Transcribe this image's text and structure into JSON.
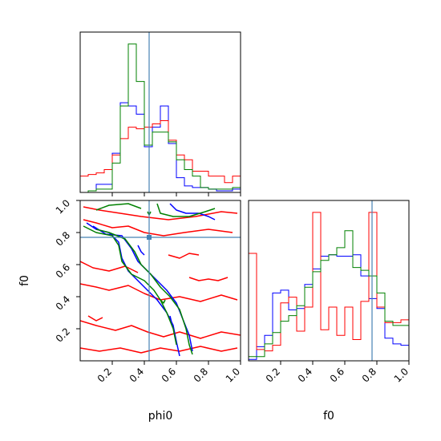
{
  "chart_data": {
    "type": "corner",
    "parameters": [
      "phi0",
      "f0"
    ],
    "truth": {
      "phi0": 0.43,
      "f0": 0.77
    },
    "truth_color": "#4682b4",
    "series_colors": [
      "#0000ff",
      "#ff0000",
      "#008000"
    ],
    "panels": {
      "phi0_hist": {
        "type": "histogram",
        "xlim": [
          0,
          1
        ],
        "bin_edges": [
          0,
          0.05,
          0.1,
          0.15,
          0.2,
          0.25,
          0.3,
          0.35,
          0.4,
          0.45,
          0.5,
          0.55,
          0.6,
          0.65,
          0.7,
          0.75,
          0.8,
          0.85,
          0.9,
          0.95,
          1.0
        ],
        "series": [
          {
            "color": "#0000ff",
            "counts": [
              0,
              0.01,
              0.05,
              0.05,
              0.24,
              0.55,
              0.53,
              0.48,
              0.28,
              0.4,
              0.53,
              0.3,
              0.09,
              0.04,
              0.03,
              0.03,
              0.02,
              0.01,
              0.01,
              0.02
            ]
          },
          {
            "color": "#ff0000",
            "counts": [
              0.1,
              0.11,
              0.12,
              0.14,
              0.23,
              0.33,
              0.4,
              0.39,
              0.4,
              0.42,
              0.44,
              0.32,
              0.23,
              0.2,
              0.13,
              0.13,
              0.1,
              0.1,
              0.06,
              0.1
            ]
          },
          {
            "color": "#008000",
            "counts": [
              0,
              0.01,
              0.02,
              0.02,
              0.18,
              0.53,
              0.91,
              0.68,
              0.29,
              0.37,
              0.37,
              0.31,
              0.2,
              0.14,
              0.1,
              0.03,
              0.02,
              0.02,
              0.02,
              0.03
            ]
          }
        ]
      },
      "f0_hist": {
        "type": "histogram",
        "xlim": [
          0,
          1
        ],
        "x_tick_labels": [
          "0.2",
          "0.4",
          "0.6",
          "0.8",
          "1.0"
        ],
        "bin_edges": [
          0,
          0.05,
          0.1,
          0.15,
          0.2,
          0.25,
          0.3,
          0.35,
          0.4,
          0.45,
          0.5,
          0.55,
          0.6,
          0.65,
          0.7,
          0.75,
          0.8,
          0.85,
          0.9,
          0.95,
          1.0
        ],
        "series": [
          {
            "color": "#0000ff",
            "counts": [
              0.01,
              0.1,
              0.18,
              0.48,
              0.5,
              0.36,
              0.37,
              0.54,
              0.65,
              0.74,
              0.75,
              0.74,
              0.74,
              0.75,
              0.6,
              0.44,
              0.37,
              0.16,
              0.12,
              0.11
            ]
          },
          {
            "color": "#ff0000",
            "counts": [
              0.76,
              0.08,
              0.07,
              0.11,
              0.41,
              0.45,
              0.21,
              0.38,
              1.05,
              0.22,
              0.38,
              0.18,
              0.38,
              0.15,
              0.42,
              1.05,
              0.38,
              0.27,
              0.27,
              0.29
            ]
          },
          {
            "color": "#008000",
            "counts": [
              0.03,
              0.03,
              0.12,
              0.2,
              0.28,
              0.32,
              0.39,
              0.52,
              0.63,
              0.71,
              0.75,
              0.8,
              0.92,
              0.66,
              0.64,
              0.6,
              0.48,
              0.28,
              0.25,
              0.25
            ]
          }
        ]
      },
      "joint": {
        "type": "contour",
        "x_param": "phi0",
        "y_param": "f0",
        "xlim": [
          0,
          1
        ],
        "ylim": [
          0,
          1
        ],
        "x_tick_labels": [
          "0.2",
          "0.4",
          "0.6",
          "0.8",
          "1.0"
        ],
        "y_tick_labels": [
          "0.2",
          "0.4",
          "0.6",
          "0.8",
          "1.0"
        ],
        "xlabel": "phi0",
        "ylabel": "f0",
        "contours": [
          {
            "color": "#ff0000",
            "path": [
              [
                0.02,
                0.96
              ],
              [
                0.12,
                0.94
              ],
              [
                0.25,
                0.92
              ],
              [
                0.38,
                0.9
              ],
              [
                0.55,
                0.88
              ],
              [
                0.72,
                0.9
              ],
              [
                0.88,
                0.93
              ],
              [
                0.98,
                0.92
              ]
            ]
          },
          {
            "color": "#ff0000",
            "path": [
              [
                0.02,
                0.88
              ],
              [
                0.1,
                0.86
              ],
              [
                0.2,
                0.83
              ],
              [
                0.3,
                0.84
              ],
              [
                0.4,
                0.8
              ],
              [
                0.52,
                0.78
              ],
              [
                0.65,
                0.8
              ],
              [
                0.8,
                0.82
              ],
              [
                0.95,
                0.8
              ]
            ]
          },
          {
            "color": "#ff0000",
            "path": [
              [
                0.0,
                0.62
              ],
              [
                0.08,
                0.58
              ],
              [
                0.18,
                0.56
              ],
              [
                0.28,
                0.59
              ],
              [
                0.36,
                0.55
              ]
            ]
          },
          {
            "color": "#ff0000",
            "path": [
              [
                0.0,
                0.48
              ],
              [
                0.1,
                0.46
              ],
              [
                0.18,
                0.44
              ],
              [
                0.3,
                0.47
              ],
              [
                0.4,
                0.42
              ],
              [
                0.5,
                0.38
              ],
              [
                0.62,
                0.4
              ],
              [
                0.75,
                0.37
              ],
              [
                0.88,
                0.41
              ],
              [
                0.98,
                0.38
              ]
            ]
          },
          {
            "color": "#ff0000",
            "path": [
              [
                0.0,
                0.25
              ],
              [
                0.1,
                0.22
              ],
              [
                0.22,
                0.19
              ],
              [
                0.32,
                0.22
              ],
              [
                0.42,
                0.18
              ],
              [
                0.52,
                0.15
              ],
              [
                0.62,
                0.18
              ],
              [
                0.75,
                0.14
              ],
              [
                0.88,
                0.18
              ],
              [
                1.0,
                0.16
              ]
            ]
          },
          {
            "color": "#ff0000",
            "path": [
              [
                0.0,
                0.08
              ],
              [
                0.12,
                0.06
              ],
              [
                0.25,
                0.08
              ],
              [
                0.38,
                0.05
              ],
              [
                0.5,
                0.08
              ],
              [
                0.62,
                0.06
              ],
              [
                0.75,
                0.09
              ],
              [
                0.88,
                0.06
              ],
              [
                0.98,
                0.08
              ]
            ]
          },
          {
            "color": "#ff0000",
            "path": [
              [
                0.55,
                0.66
              ],
              [
                0.62,
                0.64
              ],
              [
                0.68,
                0.67
              ],
              [
                0.74,
                0.66
              ]
            ]
          },
          {
            "color": "#ff0000",
            "path": [
              [
                0.68,
                0.52
              ],
              [
                0.74,
                0.5
              ],
              [
                0.8,
                0.51
              ],
              [
                0.86,
                0.5
              ],
              [
                0.92,
                0.52
              ]
            ]
          },
          {
            "color": "#ff0000",
            "path": [
              [
                0.05,
                0.28
              ],
              [
                0.1,
                0.25
              ],
              [
                0.14,
                0.27
              ]
            ]
          },
          {
            "color": "#0000ff",
            "path": [
              [
                0.56,
                0.98
              ],
              [
                0.6,
                0.94
              ],
              [
                0.66,
                0.92
              ],
              [
                0.74,
                0.92
              ],
              [
                0.8,
                0.9
              ],
              [
                0.84,
                0.88
              ]
            ]
          },
          {
            "color": "#0000ff",
            "path": [
              [
                0.04,
                0.86
              ],
              [
                0.1,
                0.82
              ],
              [
                0.18,
                0.8
              ],
              [
                0.24,
                0.74
              ],
              [
                0.26,
                0.64
              ],
              [
                0.3,
                0.56
              ],
              [
                0.36,
                0.5
              ],
              [
                0.42,
                0.44
              ],
              [
                0.48,
                0.38
              ],
              [
                0.54,
                0.3
              ],
              [
                0.58,
                0.22
              ],
              [
                0.6,
                0.12
              ],
              [
                0.62,
                0.03
              ]
            ]
          },
          {
            "color": "#0000ff",
            "path": [
              [
                0.08,
                0.84
              ],
              [
                0.16,
                0.79
              ],
              [
                0.26,
                0.78
              ],
              [
                0.32,
                0.7
              ],
              [
                0.36,
                0.62
              ],
              [
                0.42,
                0.56
              ],
              [
                0.48,
                0.5
              ],
              [
                0.54,
                0.44
              ],
              [
                0.6,
                0.36
              ],
              [
                0.64,
                0.26
              ],
              [
                0.68,
                0.16
              ],
              [
                0.7,
                0.06
              ]
            ]
          },
          {
            "color": "#0000ff",
            "path": [
              [
                0.36,
                0.72
              ],
              [
                0.38,
                0.68
              ],
              [
                0.4,
                0.66
              ]
            ]
          },
          {
            "color": "#0000ff",
            "path": [
              [
                0.56,
                0.28
              ],
              [
                0.57,
                0.24
              ],
              [
                0.58,
                0.22
              ]
            ]
          },
          {
            "color": "#008000",
            "path": [
              [
                0.1,
                0.94
              ],
              [
                0.18,
                0.97
              ],
              [
                0.3,
                0.98
              ],
              [
                0.38,
                0.95
              ]
            ]
          },
          {
            "color": "#008000",
            "path": [
              [
                0.48,
                0.98
              ],
              [
                0.5,
                0.92
              ],
              [
                0.58,
                0.9
              ],
              [
                0.68,
                0.9
              ],
              [
                0.78,
                0.93
              ],
              [
                0.84,
                0.95
              ]
            ]
          },
          {
            "color": "#008000",
            "path": [
              [
                0.02,
                0.84
              ],
              [
                0.1,
                0.8
              ],
              [
                0.2,
                0.78
              ],
              [
                0.24,
                0.72
              ],
              [
                0.26,
                0.62
              ],
              [
                0.32,
                0.54
              ],
              [
                0.4,
                0.5
              ],
              [
                0.46,
                0.44
              ],
              [
                0.5,
                0.38
              ],
              [
                0.54,
                0.3
              ],
              [
                0.58,
                0.2
              ],
              [
                0.6,
                0.1
              ]
            ]
          },
          {
            "color": "#008000",
            "path": [
              [
                0.1,
                0.82
              ],
              [
                0.18,
                0.8
              ],
              [
                0.28,
                0.76
              ],
              [
                0.34,
                0.68
              ],
              [
                0.38,
                0.6
              ],
              [
                0.44,
                0.54
              ],
              [
                0.5,
                0.46
              ],
              [
                0.56,
                0.4
              ],
              [
                0.62,
                0.32
              ],
              [
                0.66,
                0.2
              ],
              [
                0.68,
                0.1
              ],
              [
                0.7,
                0.04
              ]
            ]
          },
          {
            "color": "#008000",
            "path": [
              [
                0.42,
                0.93
              ],
              [
                0.43,
                0.91
              ],
              [
                0.44,
                0.93
              ]
            ]
          },
          {
            "color": "#008000",
            "path": [
              [
                0.5,
                0.38
              ],
              [
                0.52,
                0.36
              ],
              [
                0.53,
                0.38
              ]
            ]
          }
        ]
      }
    }
  }
}
